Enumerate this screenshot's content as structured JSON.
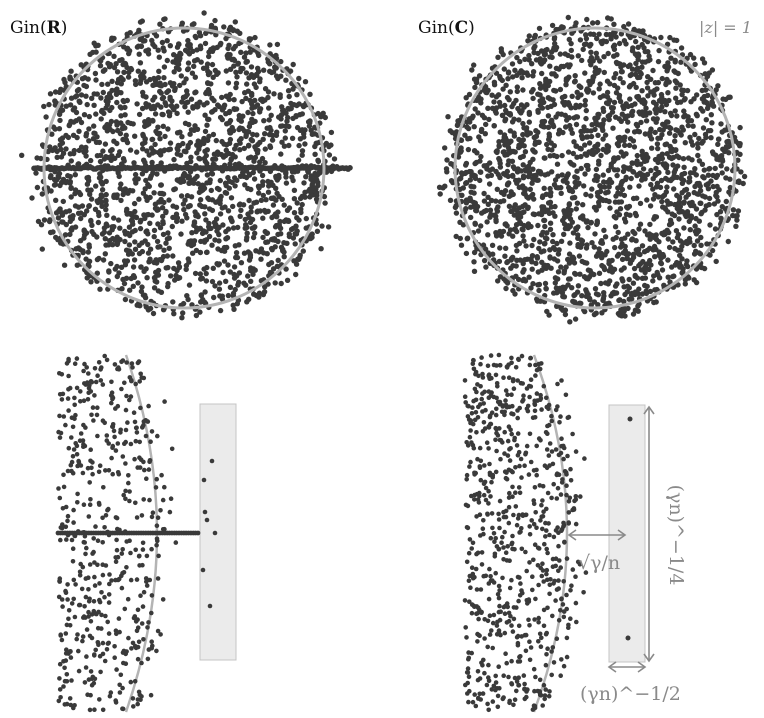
{
  "panels": [
    {
      "id": "gin-r",
      "title_prefix": "Gin(",
      "title_bold": "R",
      "title_suffix": ")"
    },
    {
      "id": "gin-c",
      "title_prefix": "Gin(",
      "title_bold": "C",
      "title_suffix": ")",
      "circle_label": "|z| = 1"
    }
  ],
  "zoom_annotations": {
    "gap_label": "√γ/n",
    "height_label": "(γn)^−1/4",
    "width_label": "(γn)^−1/2"
  },
  "colors": {
    "points": "#3a3a3a",
    "circle": "#b4b4b4",
    "box_fill": "#ebebeb",
    "box_stroke": "#c4c4c4",
    "arrow": "#8a8a8a"
  }
}
